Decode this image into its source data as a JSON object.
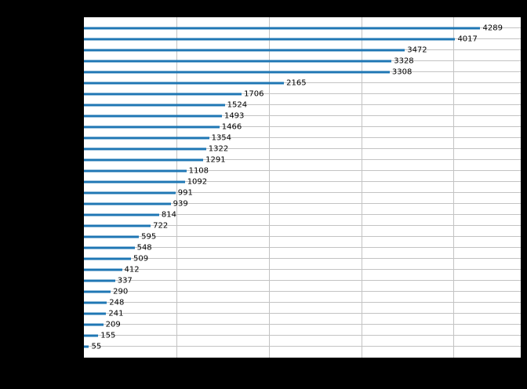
{
  "chart_data": {
    "type": "bar",
    "orientation": "horizontal",
    "title": "",
    "xlabel": "",
    "ylabel": "",
    "values": [
      4289,
      4017,
      3472,
      3328,
      3308,
      2165,
      1706,
      1524,
      1493,
      1466,
      1354,
      1322,
      1291,
      1108,
      1092,
      991,
      939,
      814,
      722,
      595,
      548,
      509,
      412,
      337,
      290,
      248,
      241,
      209,
      155,
      55
    ],
    "data_labels": [
      4289,
      4017,
      3472,
      3328,
      3308,
      2165,
      1706,
      1524,
      1493,
      1466,
      1354,
      1322,
      1291,
      1108,
      1092,
      991,
      939,
      814,
      722,
      595,
      548,
      509,
      412,
      337,
      290,
      248,
      241,
      209,
      155,
      55
    ],
    "xlim": [
      0,
      4726
    ],
    "xticks": [
      1000,
      2000,
      3000,
      4000
    ],
    "grid": "both",
    "legend": "none",
    "colors": {
      "bar": "#1f77b4",
      "grid": "#c3c3c3",
      "plot_background": "#ffffff",
      "figure_background": "#000000",
      "label_text": "#000000"
    }
  }
}
